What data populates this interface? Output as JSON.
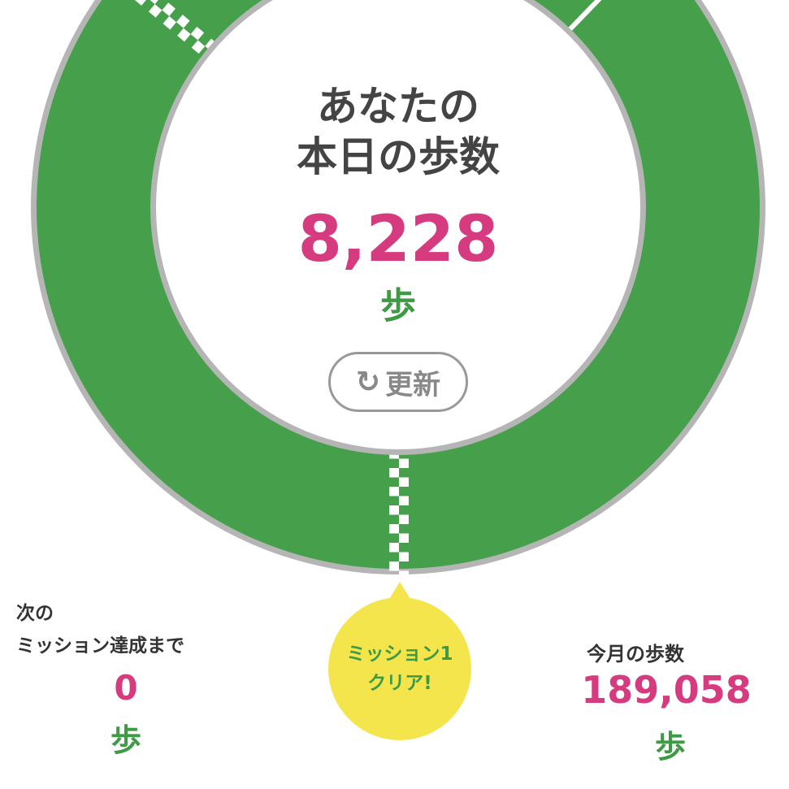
{
  "colors": {
    "ring": "#46a04b",
    "ring_border": "#b5b5b5",
    "accent": "#d63a7f",
    "bubble": "#f4e54d",
    "unit": "#3f9a45"
  },
  "today": {
    "title_line1": "あなたの",
    "title_line2": "本日の歩数",
    "steps": "8,228",
    "unit": "歩",
    "refresh_icon": "refresh-icon",
    "refresh_label": "更新"
  },
  "mission": {
    "bubble_line1": "ミッション1",
    "bubble_line2": "クリア!"
  },
  "next_mission": {
    "label_line1": "次の",
    "label_line2": "ミッション達成まで",
    "steps": "0",
    "unit": "歩"
  },
  "month": {
    "label": "今月の歩数",
    "steps": "189,058",
    "unit": "歩"
  }
}
